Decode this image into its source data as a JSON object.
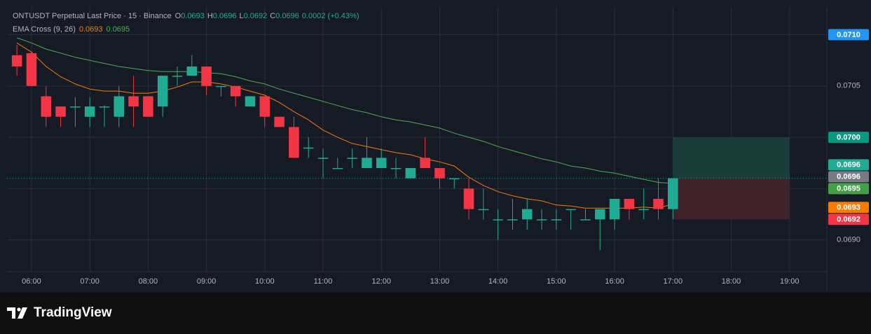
{
  "chart_data": {
    "type": "candlestick",
    "title": "ONTUSDT Perpetual Last Price · 15 · Binance",
    "ohlc_legend": [
      {
        "key": "O",
        "value": "0.0693"
      },
      {
        "key": "H",
        "value": "0.0696"
      },
      {
        "key": "L",
        "value": "0.0692"
      },
      {
        "key": "C",
        "value": "0.0696"
      }
    ],
    "change": "0.0002 (+0.43%)",
    "up_color": "#22ab94",
    "down_color": "#f23645",
    "x": [
      5.75,
      6,
      6.25,
      6.5,
      6.75,
      7,
      7.25,
      7.5,
      7.75,
      8,
      8.25,
      8.5,
      8.75,
      9,
      9.25,
      9.5,
      9.75,
      10,
      10.25,
      10.5,
      10.75,
      11,
      11.25,
      11.5,
      11.75,
      12,
      12.25,
      12.5,
      12.75,
      13,
      13.25,
      13.5,
      13.75,
      14,
      14.25,
      14.5,
      14.75,
      15,
      15.25,
      15.5,
      15.75,
      16,
      16.25,
      16.5,
      16.75,
      17
    ],
    "open": [
      0.0708,
      0.07082,
      0.0704,
      0.0703,
      0.07029,
      0.0702,
      0.07029,
      0.0702,
      0.0704,
      0.0704,
      0.0703,
      0.07059,
      0.0706,
      0.07069,
      0.07049,
      0.0705,
      0.0703,
      0.0704,
      0.0702,
      0.0701,
      0.06989,
      0.06979,
      0.06969,
      0.06979,
      0.0697,
      0.0697,
      0.06969,
      0.0696,
      0.0698,
      0.0697,
      0.06959,
      0.0695,
      0.06929,
      0.06919,
      0.06919,
      0.0692,
      0.06919,
      0.06919,
      0.06929,
      0.06919,
      0.0692,
      0.0692,
      0.0694,
      0.06929,
      0.0694,
      0.0693
    ],
    "high": [
      0.0709,
      0.07084,
      0.0705,
      0.0703,
      0.07039,
      0.07039,
      0.07031,
      0.0705,
      0.0706,
      0.0704,
      0.0706,
      0.07069,
      0.0708,
      0.07069,
      0.0705,
      0.0705,
      0.0704,
      0.0704,
      0.0702,
      0.0702,
      0.07,
      0.06989,
      0.0698,
      0.06989,
      0.07,
      0.06989,
      0.0698,
      0.0697,
      0.07,
      0.0697,
      0.0696,
      0.0696,
      0.0695,
      0.0693,
      0.0694,
      0.0694,
      0.0693,
      0.0693,
      0.0693,
      0.0693,
      0.0693,
      0.0694,
      0.0694,
      0.0695,
      0.0696,
      0.0696
    ],
    "low": [
      0.0706,
      0.0705,
      0.0701,
      0.0701,
      0.0701,
      0.0701,
      0.0701,
      0.0701,
      0.0701,
      0.0702,
      0.0702,
      0.0705,
      0.0706,
      0.07041,
      0.0704,
      0.0703,
      0.0703,
      0.0701,
      0.0701,
      0.0698,
      0.0698,
      0.0696,
      0.0697,
      0.0697,
      0.0697,
      0.0697,
      0.0696,
      0.0696,
      0.0697,
      0.0695,
      0.0695,
      0.0692,
      0.0692,
      0.069,
      0.0691,
      0.0691,
      0.0691,
      0.0691,
      0.0691,
      0.0692,
      0.0689,
      0.0691,
      0.0692,
      0.0692,
      0.0692,
      0.0692
    ],
    "close": [
      0.07069,
      0.0705,
      0.0702,
      0.0702,
      0.0703,
      0.0703,
      0.0703,
      0.0704,
      0.0703,
      0.0702,
      0.0706,
      0.0706,
      0.07069,
      0.0705,
      0.0705,
      0.0704,
      0.0704,
      0.0702,
      0.0701,
      0.0698,
      0.0699,
      0.0698,
      0.0697,
      0.0698,
      0.0698,
      0.0698,
      0.0697,
      0.0697,
      0.0697,
      0.0696,
      0.0696,
      0.0693,
      0.0693,
      0.0692,
      0.0692,
      0.0693,
      0.0692,
      0.0692,
      0.0693,
      0.0692,
      0.0693,
      0.0694,
      0.0693,
      0.0693,
      0.0693,
      0.0696
    ],
    "indicator": {
      "name": "EMA Cross (9, 26)",
      "lines": [
        {
          "color": "#f57c00",
          "value_label": "0.0693",
          "values": [
            0.07092,
            0.07083,
            0.07069,
            0.07059,
            0.07052,
            0.07047,
            0.07045,
            0.07045,
            0.07043,
            0.07043,
            0.07045,
            0.07049,
            0.07054,
            0.07054,
            0.07052,
            0.07049,
            0.07045,
            0.07041,
            0.07034,
            0.07025,
            0.07017,
            0.07007,
            0.07,
            0.06994,
            0.06991,
            0.06988,
            0.06985,
            0.06983,
            0.06979,
            0.06976,
            0.06972,
            0.06961,
            0.06953,
            0.06947,
            0.06943,
            0.0694,
            0.06938,
            0.06934,
            0.06933,
            0.06931,
            0.06931,
            0.06931,
            0.06931,
            0.06932,
            0.06931,
            0.06935
          ]
        },
        {
          "color": "#4caf50",
          "value_label": "0.0695",
          "values": [
            0.07097,
            0.07092,
            0.07086,
            0.07082,
            0.07078,
            0.07075,
            0.07072,
            0.07069,
            0.07067,
            0.07065,
            0.07064,
            0.07064,
            0.07064,
            0.07063,
            0.07062,
            0.07059,
            0.07055,
            0.07052,
            0.07047,
            0.07043,
            0.07039,
            0.07035,
            0.07031,
            0.07027,
            0.07024,
            0.0702,
            0.07017,
            0.07015,
            0.07012,
            0.07009,
            0.07004,
            0.07,
            0.06996,
            0.06991,
            0.06987,
            0.06983,
            0.06979,
            0.06976,
            0.06972,
            0.0697,
            0.06967,
            0.06965,
            0.06962,
            0.06959,
            0.06956,
            0.06955
          ]
        }
      ]
    },
    "position": {
      "start": 17,
      "end": 19,
      "entry": 0.0696,
      "target": 0.07,
      "stop": 0.0692,
      "profit_color": "#1a3d3a",
      "loss_color": "#3e2229"
    },
    "price_labels": [
      {
        "value": 0.071,
        "label": "0.0710",
        "color": "#2196f3"
      },
      {
        "value": 0.07,
        "label": "0.0700",
        "color": "#089981"
      },
      {
        "value": 0.0696,
        "label": "0.0696",
        "color": "#22ab94"
      },
      {
        "value": 0.0696,
        "label": "0.0696",
        "color": "#787b86"
      },
      {
        "value": 0.0695,
        "label": "0.0695",
        "color": "#43a047"
      },
      {
        "value": 0.0693,
        "label": "0.0693",
        "color": "#f57c00"
      },
      {
        "value": 0.0692,
        "label": "0.0692",
        "color": "#f23645"
      }
    ],
    "xlim": [
      5.58,
      19.64
    ],
    "xticks": [
      {
        "value": 6,
        "label": "06:00"
      },
      {
        "value": 7,
        "label": "07:00"
      },
      {
        "value": 8,
        "label": "08:00"
      },
      {
        "value": 9,
        "label": "09:00"
      },
      {
        "value": 10,
        "label": "10:00"
      },
      {
        "value": 11,
        "label": "11:00"
      },
      {
        "value": 12,
        "label": "12:00"
      },
      {
        "value": 13,
        "label": "13:00"
      },
      {
        "value": 14,
        "label": "14:00"
      },
      {
        "value": 15,
        "label": "15:00"
      },
      {
        "value": 16,
        "label": "16:00"
      },
      {
        "value": 17,
        "label": "17:00"
      },
      {
        "value": 18,
        "label": "18:00"
      },
      {
        "value": 19,
        "label": "19:00"
      }
    ],
    "ylim": [
      0.06869,
      0.07127
    ],
    "yticks": [
      {
        "value": 0.069,
        "label": "0.0690"
      },
      {
        "value": 0.0695,
        "label": "0.0695"
      },
      {
        "value": 0.07,
        "label": "0.0700"
      },
      {
        "value": 0.0705,
        "label": "0.0705"
      },
      {
        "value": 0.071,
        "label": "0.0710"
      }
    ],
    "grid": true
  },
  "brand": "TradingView"
}
